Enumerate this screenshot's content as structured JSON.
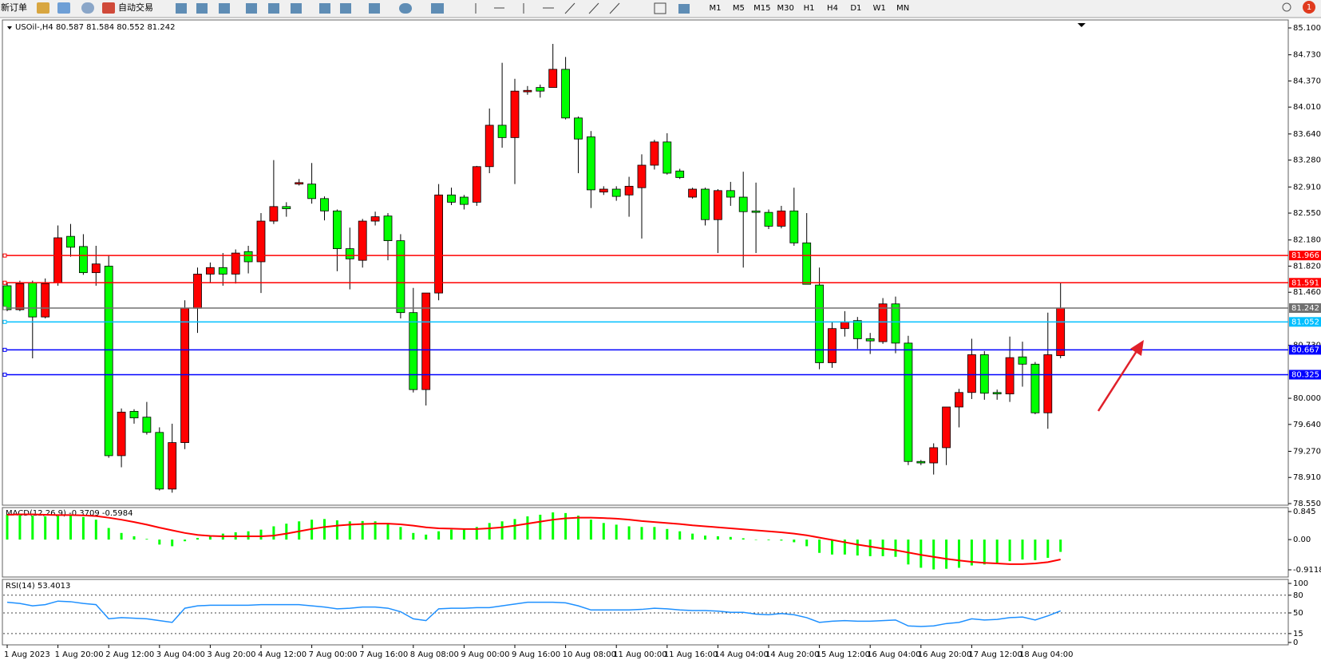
{
  "toolbar": {
    "new_order": "新订单",
    "auto_trading": "自动交易",
    "timeframes": [
      "M1",
      "M5",
      "M15",
      "M30",
      "H1",
      "H4",
      "D1",
      "W1",
      "MN"
    ],
    "notifications": "1"
  },
  "chart_data": [
    {
      "type": "candlestick",
      "title": "USOil-,H4  80.587 81.584 80.552 81.242",
      "x": [
        "1 Aug 2023",
        null,
        null,
        null,
        "1 Aug 20:00",
        null,
        null,
        null,
        "2 Aug 12:00",
        null,
        null,
        null,
        "3 Aug 04:00",
        null,
        null,
        null,
        "3 Aug 20:00",
        null,
        null,
        null,
        "4 Aug 12:00",
        null,
        null,
        null,
        "7 Aug 00:00",
        null,
        null,
        null,
        "7 Aug 16:00",
        null,
        null,
        null,
        "8 Aug 08:00",
        null,
        null,
        null,
        "9 Aug 00:00",
        null,
        null,
        null,
        "9 Aug 16:00",
        null,
        null,
        null,
        "10 Aug 08:00",
        null,
        null,
        null,
        "11 Aug 00:00",
        null,
        null,
        null,
        "11 Aug 16:00",
        null,
        null,
        null,
        "14 Aug 04:00",
        null,
        null,
        null,
        "14 Aug 20:00",
        null,
        null,
        null,
        "15 Aug 12:00",
        null,
        null,
        null,
        "16 Aug 04:00",
        null,
        null,
        null,
        "16 Aug 20:00",
        null,
        null,
        null,
        "17 Aug 12:00",
        null,
        null,
        null,
        "18 Aug 04:00",
        null,
        null,
        null
      ],
      "open": [
        81.55,
        81.22,
        81.59,
        81.12,
        81.59,
        82.23,
        82.09,
        81.73,
        81.82,
        79.21,
        79.82,
        79.74,
        79.53,
        78.75,
        79.39,
        81.24,
        81.71,
        81.8,
        81.71,
        82.02,
        81.88,
        82.44,
        82.64,
        82.95,
        82.95,
        82.75,
        82.58,
        82.06,
        81.9,
        82.44,
        82.51,
        82.17,
        81.18,
        80.12,
        81.45,
        82.8,
        82.77,
        82.7,
        83.19,
        83.76,
        83.59,
        84.22,
        84.28,
        84.28,
        84.53,
        83.86,
        83.6,
        82.84,
        82.88,
        82.8,
        82.9,
        83.21,
        83.53,
        83.13,
        82.77,
        82.88,
        82.46,
        82.86,
        82.77,
        82.58,
        82.56,
        82.37,
        82.58,
        82.14,
        81.56,
        80.49,
        80.96,
        81.07,
        80.82,
        80.78,
        81.3,
        80.76,
        79.13,
        79.11,
        79.32,
        79.88,
        80.08,
        80.6,
        80.08,
        80.06,
        80.57,
        80.47,
        79.8,
        80.587
      ],
      "high": [
        81.6,
        81.62,
        81.62,
        81.65,
        82.38,
        82.4,
        82.26,
        82.1,
        81.97,
        79.86,
        79.85,
        79.95,
        79.6,
        79.65,
        81.35,
        81.8,
        81.87,
        82.0,
        82.05,
        82.1,
        82.55,
        83.28,
        82.7,
        83.02,
        83.24,
        82.78,
        82.6,
        82.35,
        82.47,
        82.57,
        82.55,
        82.26,
        81.52,
        81.45,
        82.95,
        82.9,
        82.8,
        83.2,
        83.99,
        84.62,
        84.4,
        84.3,
        84.32,
        84.88,
        84.7,
        83.88,
        83.68,
        82.92,
        82.92,
        83.05,
        83.36,
        83.56,
        83.65,
        83.16,
        82.9,
        82.9,
        82.88,
        82.98,
        83.12,
        82.97,
        82.6,
        82.65,
        82.9,
        82.55,
        81.8,
        81.05,
        81.2,
        81.12,
        80.9,
        81.38,
        81.4,
        80.86,
        79.15,
        79.38,
        79.88,
        80.13,
        80.82,
        80.65,
        80.12,
        80.85,
        80.78,
        80.5,
        81.18,
        81.584
      ],
      "low": [
        81.2,
        81.2,
        80.55,
        81.1,
        81.55,
        81.95,
        81.7,
        81.55,
        79.18,
        79.05,
        79.65,
        79.5,
        78.73,
        78.7,
        79.3,
        80.9,
        81.6,
        81.55,
        81.58,
        81.72,
        81.45,
        82.4,
        82.5,
        82.93,
        82.68,
        82.45,
        81.75,
        81.5,
        81.8,
        82.38,
        81.9,
        81.1,
        80.08,
        79.9,
        81.35,
        82.66,
        82.6,
        82.65,
        83.1,
        83.45,
        82.95,
        84.18,
        84.14,
        84.28,
        83.84,
        83.1,
        82.62,
        82.8,
        82.72,
        82.5,
        82.2,
        83.15,
        83.08,
        83.02,
        82.75,
        82.38,
        82.0,
        82.65,
        81.8,
        82.0,
        82.33,
        82.34,
        82.1,
        81.57,
        80.4,
        80.42,
        80.85,
        80.68,
        80.61,
        80.75,
        80.62,
        79.08,
        79.08,
        78.95,
        79.08,
        79.6,
        79.99,
        79.98,
        79.98,
        79.95,
        80.16,
        79.78,
        79.58,
        80.552
      ],
      "close": [
        81.22,
        81.58,
        81.12,
        81.58,
        82.21,
        82.08,
        81.73,
        81.85,
        79.21,
        79.81,
        79.73,
        79.53,
        78.75,
        79.39,
        81.24,
        81.71,
        81.8,
        81.71,
        82.0,
        81.88,
        82.44,
        82.64,
        82.61,
        82.97,
        82.75,
        82.58,
        82.06,
        81.92,
        82.44,
        82.5,
        82.17,
        81.18,
        80.12,
        81.45,
        82.8,
        82.7,
        82.67,
        83.19,
        83.76,
        83.59,
        84.23,
        84.24,
        84.23,
        84.53,
        83.86,
        83.57,
        82.87,
        82.88,
        82.78,
        82.92,
        83.21,
        83.53,
        83.1,
        83.04,
        82.88,
        82.46,
        82.86,
        82.77,
        82.57,
        82.56,
        82.37,
        82.58,
        82.14,
        81.57,
        80.49,
        80.96,
        81.05,
        80.82,
        80.79,
        81.3,
        80.76,
        79.13,
        79.11,
        79.32,
        79.88,
        80.08,
        80.6,
        80.07,
        80.06,
        80.56,
        80.47,
        79.8,
        80.6,
        81.242
      ],
      "up_color": "#ff0000",
      "down_color": "#00ff00",
      "ylim": [
        78.55,
        85.1
      ],
      "yticks": [
        {
          "value": 85.1,
          "label": "85.100"
        },
        {
          "value": 84.73,
          "label": "84.730"
        },
        {
          "value": 84.37,
          "label": "84.370"
        },
        {
          "value": 84.01,
          "label": "84.010"
        },
        {
          "value": 83.64,
          "label": "83.640"
        },
        {
          "value": 83.28,
          "label": "83.280"
        },
        {
          "value": 82.91,
          "label": "82.910"
        },
        {
          "value": 82.55,
          "label": "82.550"
        },
        {
          "value": 82.18,
          "label": "82.180"
        },
        {
          "value": 81.82,
          "label": "81.820"
        },
        {
          "value": 81.46,
          "label": "81.460"
        },
        {
          "value": 80.73,
          "label": "80.730"
        },
        {
          "value": 80.0,
          "label": "80.000"
        },
        {
          "value": 79.64,
          "label": "79.640"
        },
        {
          "value": 79.27,
          "label": "79.270"
        },
        {
          "value": 78.91,
          "label": "78.910"
        },
        {
          "value": 78.55,
          "label": "78.550"
        }
      ],
      "levels": [
        {
          "value": 81.966,
          "color": "#ff0000"
        },
        {
          "value": 81.591,
          "color": "#ff0000"
        },
        {
          "value": 81.242,
          "color": "#707070"
        },
        {
          "value": 81.052,
          "color": "#00bfff"
        },
        {
          "value": 80.667,
          "color": "#0000ff"
        },
        {
          "value": 80.325,
          "color": "#0000ff"
        }
      ]
    },
    {
      "type": "macd",
      "title": "MACD(12,26,9) -0.3709 -0.5984",
      "series": [
        {
          "style": "histogram",
          "color": "#00ff00",
          "values": [
            0.75,
            0.76,
            0.72,
            0.7,
            0.72,
            0.72,
            0.68,
            0.6,
            0.35,
            0.2,
            0.1,
            0.02,
            -0.15,
            -0.2,
            -0.05,
            0.05,
            0.12,
            0.18,
            0.22,
            0.25,
            0.3,
            0.4,
            0.48,
            0.55,
            0.6,
            0.62,
            0.58,
            0.55,
            0.56,
            0.55,
            0.5,
            0.38,
            0.2,
            0.15,
            0.25,
            0.3,
            0.32,
            0.38,
            0.5,
            0.55,
            0.62,
            0.7,
            0.75,
            0.82,
            0.8,
            0.72,
            0.6,
            0.5,
            0.45,
            0.4,
            0.38,
            0.38,
            0.32,
            0.25,
            0.18,
            0.12,
            0.1,
            0.08,
            0.04,
            0.0,
            -0.02,
            -0.03,
            -0.08,
            -0.2,
            -0.4,
            -0.45,
            -0.45,
            -0.48,
            -0.5,
            -0.5,
            -0.52,
            -0.75,
            -0.85,
            -0.9,
            -0.88,
            -0.85,
            -0.78,
            -0.75,
            -0.72,
            -0.65,
            -0.6,
            -0.62,
            -0.55,
            -0.3709
          ]
        },
        {
          "style": "line",
          "color": "#ff0000",
          "values": [
            0.75,
            0.76,
            0.76,
            0.75,
            0.74,
            0.74,
            0.73,
            0.71,
            0.66,
            0.6,
            0.53,
            0.45,
            0.36,
            0.28,
            0.2,
            0.14,
            0.11,
            0.1,
            0.1,
            0.1,
            0.1,
            0.12,
            0.18,
            0.25,
            0.32,
            0.38,
            0.42,
            0.45,
            0.47,
            0.48,
            0.48,
            0.46,
            0.42,
            0.37,
            0.34,
            0.33,
            0.32,
            0.32,
            0.34,
            0.37,
            0.42,
            0.48,
            0.54,
            0.6,
            0.64,
            0.66,
            0.66,
            0.65,
            0.63,
            0.6,
            0.56,
            0.53,
            0.5,
            0.47,
            0.43,
            0.4,
            0.37,
            0.34,
            0.31,
            0.28,
            0.25,
            0.22,
            0.18,
            0.13,
            0.06,
            -0.01,
            -0.08,
            -0.15,
            -0.21,
            -0.27,
            -0.32,
            -0.39,
            -0.46,
            -0.52,
            -0.58,
            -0.63,
            -0.67,
            -0.7,
            -0.72,
            -0.74,
            -0.74,
            -0.72,
            -0.68,
            -0.5984
          ]
        }
      ],
      "ylim": [
        -0.9118,
        0.845
      ],
      "yticks": [
        0.845,
        {
          "value": 0,
          "label": "0.00"
        },
        -0.9118
      ]
    },
    {
      "type": "line",
      "title": "RSI(14) 53.4013",
      "color": "#1e90ff",
      "values": [
        68,
        66,
        62,
        64,
        70,
        69,
        66,
        64,
        40,
        42,
        41,
        40,
        37,
        34,
        58,
        62,
        63,
        63,
        63,
        63,
        64,
        64,
        64,
        64,
        62,
        60,
        57,
        58,
        60,
        60,
        58,
        52,
        40,
        37,
        57,
        58,
        58,
        59,
        59,
        62,
        65,
        68,
        68,
        68,
        67,
        62,
        55,
        55,
        55,
        55,
        56,
        58,
        57,
        55,
        54,
        54,
        53,
        51,
        51,
        48,
        47,
        49,
        47,
        42,
        34,
        36,
        37,
        36,
        36,
        37,
        38,
        28,
        27,
        28,
        32,
        34,
        40,
        38,
        39,
        42,
        43,
        38,
        45,
        53.4013
      ],
      "ylim": [
        0,
        100
      ],
      "yticks": [
        100,
        80,
        50,
        15,
        0
      ],
      "levels": [
        80,
        50,
        15
      ]
    }
  ]
}
